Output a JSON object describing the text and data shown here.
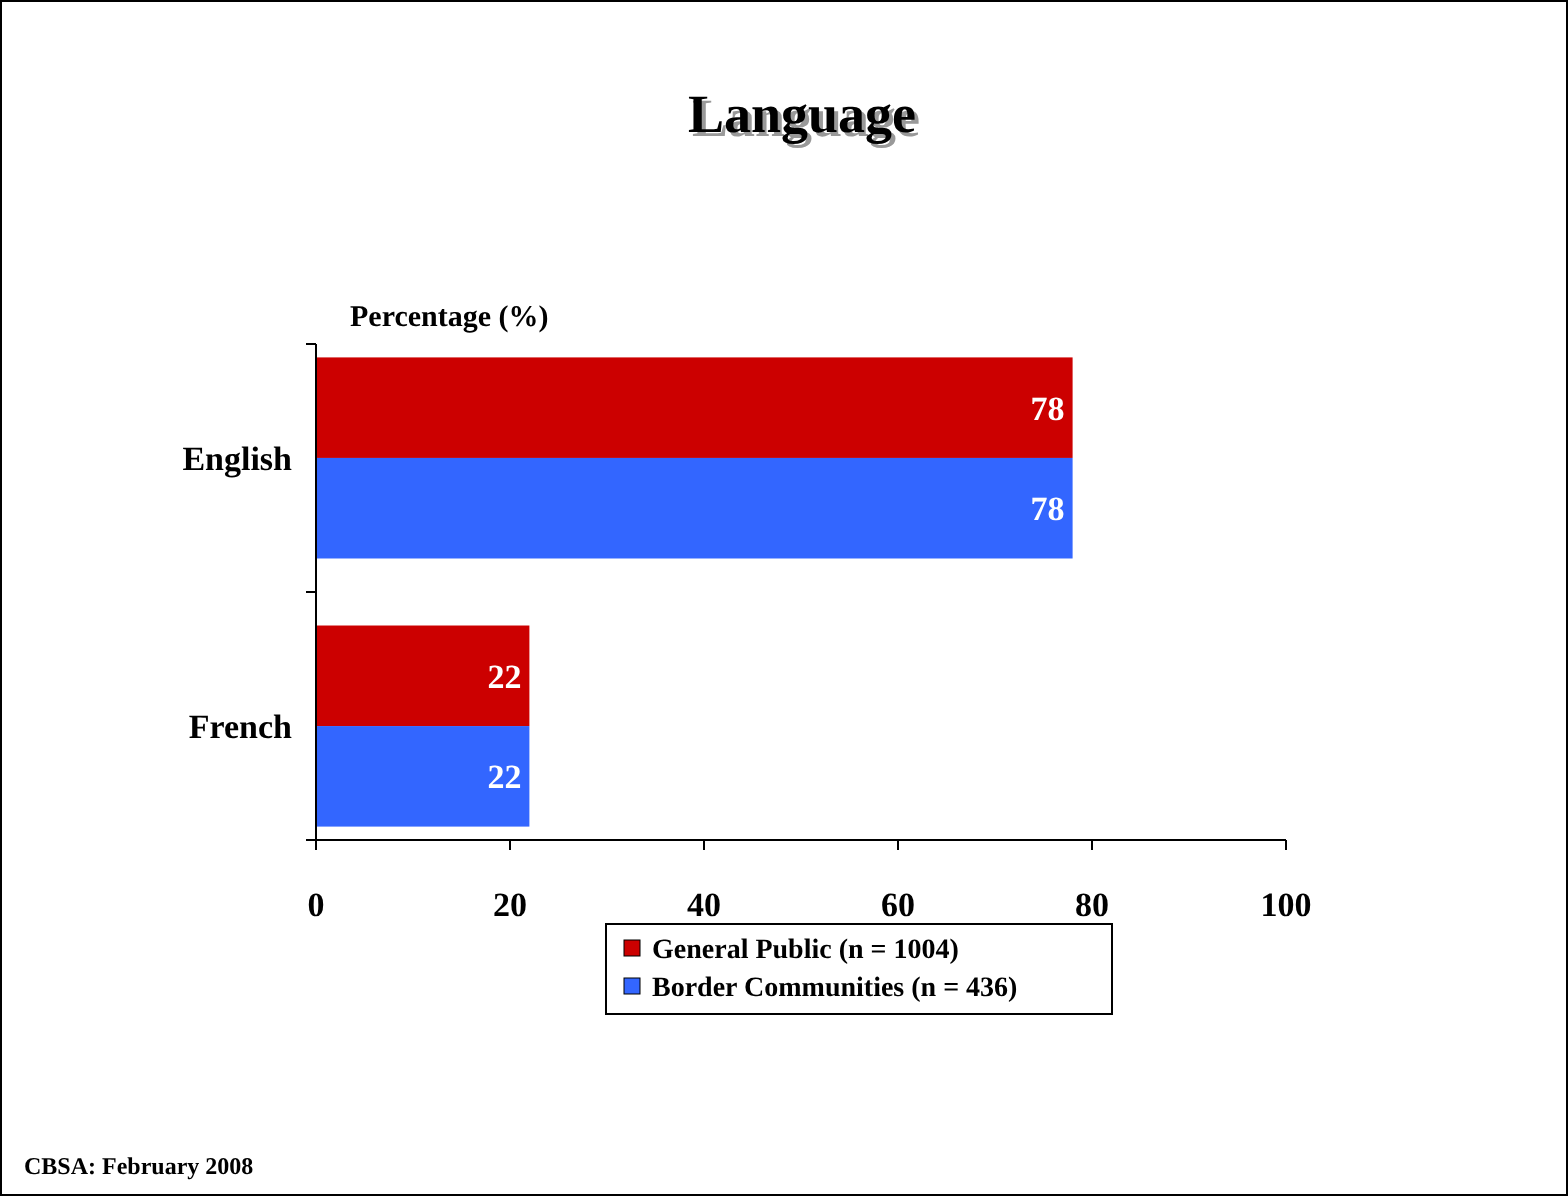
{
  "chart_data": {
    "type": "bar",
    "orientation": "horizontal",
    "title": "Language",
    "xlabel": "Percentage (%)",
    "categories": [
      "English",
      "French"
    ],
    "series": [
      {
        "name": "General Public (n = 1004)",
        "color": "#cc0000",
        "values": [
          78,
          22
        ]
      },
      {
        "name": "Border Communities (n = 436)",
        "color": "#3366ff",
        "values": [
          78,
          22
        ]
      }
    ],
    "xlim": [
      0,
      100
    ],
    "xticks": [
      0,
      20,
      40,
      60,
      80,
      100
    ],
    "legend": "bottom",
    "data_labels": true,
    "annotations": [
      "CBSA: February 2008"
    ]
  }
}
